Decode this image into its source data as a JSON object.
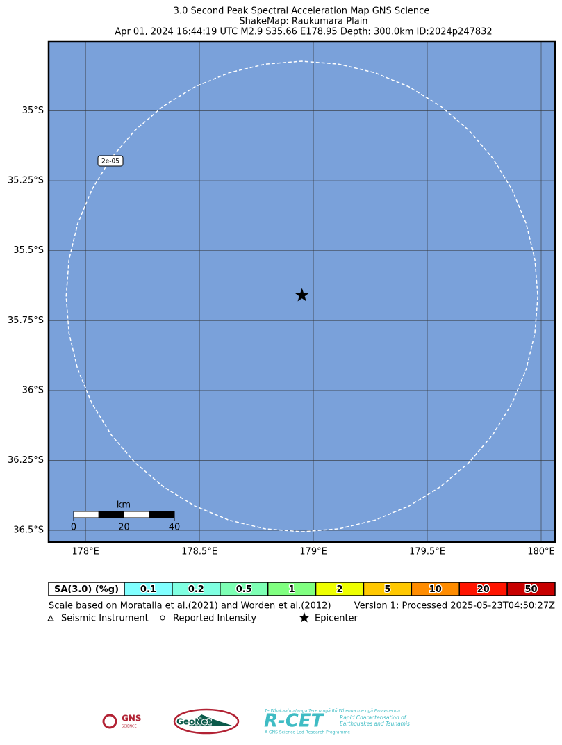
{
  "title": [
    "3.0 Second Peak Spectral Acceleration Map GNS Science",
    "ShakeMap: Raukumara Plain",
    "Apr 01, 2024 16:44:19 UTC M2.9 S35.66 E178.95 Depth: 300.0km ID:2024p247832"
  ],
  "map": {
    "xlim": [
      177.838,
      180.061
    ],
    "ylim": [
      -36.542,
      -34.753
    ],
    "xticks": [
      {
        "value": 178,
        "label": "178°E"
      },
      {
        "value": 178.5,
        "label": "178.5°E"
      },
      {
        "value": 179,
        "label": "179°E"
      },
      {
        "value": 179.5,
        "label": "179.5°E"
      },
      {
        "value": 180,
        "label": "180°E"
      }
    ],
    "yticks": [
      {
        "value": -35,
        "label": "35°S"
      },
      {
        "value": -35.25,
        "label": "35.25°S"
      },
      {
        "value": -35.5,
        "label": "35.5°S"
      },
      {
        "value": -35.75,
        "label": "35.75°S"
      },
      {
        "value": -36,
        "label": "36°S"
      },
      {
        "value": -36.25,
        "label": "36.25°S"
      },
      {
        "value": -36.5,
        "label": "36.5°S"
      }
    ],
    "grid": true,
    "water_color": "#7aa1da",
    "epicenter": {
      "lon": 178.95,
      "lat": -35.66
    },
    "contour_label": "2e-05"
  },
  "scale_bar": {
    "unit": "km",
    "ticks": [
      0,
      20,
      40
    ]
  },
  "colorbar": {
    "label": "SA(3.0) (%g)",
    "levels": [
      0.1,
      0.2,
      0.5,
      1,
      2,
      5,
      10,
      20,
      50
    ],
    "colors": [
      "#80ffff",
      "#7fffe1",
      "#7dffb4",
      "#80ff80",
      "#eeff00",
      "#ffc800",
      "#ff8c00",
      "#ff1400",
      "#c80000"
    ]
  },
  "notes": {
    "scale": "Scale based on Moratalla et al.(2021) and Worden et al.(2012)",
    "version": "Version 1: Processed 2025-05-23T04:50:27Z"
  },
  "legend": [
    "Seismic Instrument",
    "Reported Intensity",
    "Epicenter"
  ],
  "logos": {
    "gns": "GNS",
    "gns_sub": "SCIENCE",
    "geonet": "GeoNet",
    "rcet": "R-CET",
    "rcet_top": "Te Whakaahuatanga Tere o ngā Rū Whenua me ngā Parawhenua",
    "rcet_side": [
      "Rapid Characterisation of",
      "Earthquakes and Tsunamis"
    ],
    "rcet_bottom": "A GNS Science Led Research Programme"
  }
}
